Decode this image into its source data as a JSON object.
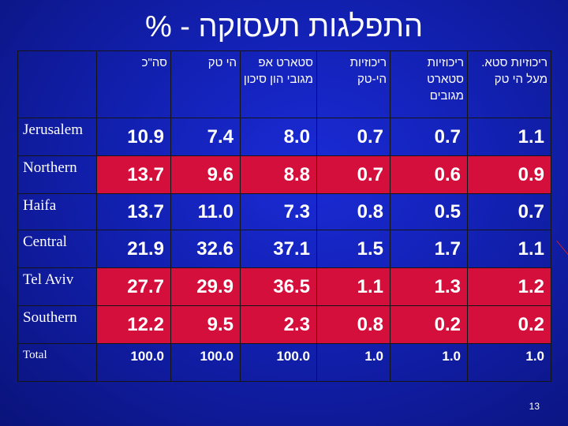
{
  "title": "התפלגות תעסוקה - %",
  "headers": [
    "",
    "סה\"כ",
    "הי טק",
    "סטארט אפ מגובי הון סיכון",
    "ריכוזיות הי-טק",
    "ריכוזיות סטארט מגובים",
    "ריכוזיות סטא. מעל הי טק"
  ],
  "rows": [
    {
      "region": "Jerusalem",
      "values": [
        "10.9",
        "7.4",
        "8.0",
        "0.7",
        "0.7",
        "1.1"
      ]
    },
    {
      "region": "Northern",
      "values": [
        "13.7",
        "9.6",
        "8.8",
        "0.7",
        "0.6",
        "0.9"
      ]
    },
    {
      "region": "Haifa",
      "values": [
        "13.7",
        "11.0",
        "7.3",
        "0.8",
        "0.5",
        "0.7"
      ]
    },
    {
      "region": "Central",
      "values": [
        "21.9",
        "32.6",
        "37.1",
        "1.5",
        "1.7",
        "1.1"
      ]
    },
    {
      "region": "Tel Aviv",
      "values": [
        "27.7",
        "29.9",
        "36.5",
        "1.1",
        "1.3",
        "1.2"
      ]
    },
    {
      "region": "Southern",
      "values": [
        "12.2",
        "9.5",
        "2.3",
        "0.8",
        "0.2",
        "0.2"
      ]
    },
    {
      "region": "Total",
      "values": [
        "100.0",
        "100.0",
        "100.0",
        "1.0",
        "1.0",
        "1.0"
      ]
    }
  ],
  "page_number": "13",
  "colors": {
    "background": "#1220b0",
    "highlight": "#d40f3c"
  }
}
